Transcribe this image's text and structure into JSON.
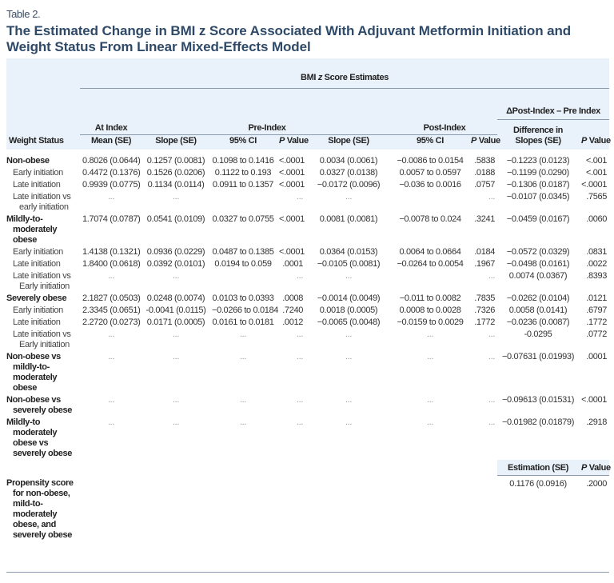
{
  "label": "Table 2.",
  "title": "The Estimated Change in BMI z Score Associated With Adjuvant Metformin Initiation and Weight Status From Linear Mixed-Effects Model",
  "colors": {
    "title": "#2f4a68",
    "header_bg": "#e9f1fa",
    "rule": "#8a9bb0"
  },
  "header": {
    "span_title_pre": "BMI ",
    "span_title_z": "z",
    "span_title_post": " Score Estimates",
    "delta_group": "ΔPost-Index – Pre Index",
    "at_index": "At Index",
    "pre_index": "Pre-Index",
    "post_index": "Post-Index",
    "difference": "Difference in Slopes (SE)",
    "columns": [
      "Weight Status",
      "Mean (SE)",
      "Slope (SE)",
      "95% CI",
      "Value",
      "Slope (SE)",
      "95% CI",
      "Value",
      "Value"
    ],
    "p": "P"
  },
  "rows": [
    {
      "label": "Non-obese",
      "type": "group",
      "cells": [
        "0.8026 (0.0644)",
        "0.1257 (0.0081)",
        "0.1098 to 0.1416",
        "<.0001",
        "0.0034 (0.0061)",
        "−0.0086 to 0.0154",
        ".5838",
        "−0.1223 (0.0123)",
        "<.001"
      ]
    },
    {
      "label": "Early initiation",
      "type": "sub",
      "cells": [
        "0.4472 (0.1376)",
        "0.1526 (0.0206)",
        "0.1122 to 0.193",
        "<.0001",
        "0.0327 (0.0138)",
        "0.0057 to 0.0597",
        ".0188",
        "−0.1199 (0.0290)",
        "<.001"
      ]
    },
    {
      "label": "Late initiation",
      "type": "sub",
      "cells": [
        "0.9939 (0.0775)",
        "0.1134 (0.0114)",
        "0.0911 to 0.1357",
        "<.0001",
        "−0.0172 (0.0096)",
        "−0.036 to 0.0016",
        ".0757",
        "−0.1306 (0.0187)",
        "<.0001"
      ]
    },
    {
      "label": "Late initiation vs early initiation",
      "type": "sub",
      "cells": [
        "...",
        "...",
        "",
        "...",
        "...",
        "",
        "...",
        "−0.0107 (0.0345)",
        ".7565"
      ]
    },
    {
      "label": "Mildly-to-moderately obese",
      "type": "group",
      "cells": [
        "1.7074 (0.0787)",
        "0.0541 (0.0109)",
        "0.0327 to 0.0755",
        "<.0001",
        "0.0081 (0.0081)",
        "−0.0078 to 0.024",
        ".3241",
        "−0.0459 (0.0167)",
        ".0060"
      ]
    },
    {
      "label": "Early initiation",
      "type": "sub",
      "cells": [
        "1.4138 (0.1321)",
        "0.0936 (0.0229)",
        "0.0487 to 0.1385",
        "<.0001",
        "0.0364 (0.0153)",
        "0.0064 to 0.0664",
        ".0184",
        "−0.0572 (0.0329)",
        ".0831"
      ]
    },
    {
      "label": "Late initiation",
      "type": "sub",
      "cells": [
        "1.8400 (0.0618)",
        "0.0392 (0.0101)",
        "0.0194 to 0.059",
        ".0001",
        "−0.0105 (0.0081)",
        "−0.0264 to 0.0054",
        ".1967",
        "−0.0498 (0.0161)",
        ".0022"
      ]
    },
    {
      "label": "Late initiation vs Early initiation",
      "type": "sub",
      "cells": [
        "...",
        "...",
        "",
        "...",
        "...",
        "",
        "...",
        "0.0074 (0.0367)",
        ".8393"
      ]
    },
    {
      "label": "Severely obese",
      "type": "group",
      "cells": [
        "2.1827 (0.0503)",
        "0.0248 (0.0074)",
        "0.0103 to 0.0393",
        ".0008",
        "−0.0014 (0.0049)",
        "−0.011 to 0.0082",
        ".7835",
        "−0.0262 (0.0104)",
        ".0121"
      ]
    },
    {
      "label": "Early initiation",
      "type": "sub",
      "cells": [
        "2.3345 (0.0651)",
        "-0.0041 (0.0115)",
        "−0.0266 to 0.0184",
        ".7240",
        "0.0018 (0.0005)",
        "0.0008 to 0.0028",
        ".7326",
        "0.0058 (0.0141)",
        ".6797"
      ]
    },
    {
      "label": "Late initiation",
      "type": "sub",
      "cells": [
        "2.2720 (0.0273)",
        "0.0171 (0.0005)",
        "0.0161 to 0.0181",
        ".0012",
        "−0.0065 (0.0048)",
        "−0.0159 to 0.0029",
        ".1772",
        "−0.0236 (0.0087)",
        ".1772"
      ]
    },
    {
      "label": "Late initiation vs Early initiation",
      "type": "sub",
      "cells": [
        "...",
        "...",
        "...",
        "...",
        "...",
        "...",
        "...",
        "-0.0295",
        ".0772"
      ]
    },
    {
      "label": "Non-obese vs mildly-to-moderately obese",
      "type": "group",
      "cells": [
        "...",
        "...",
        "...",
        "...",
        "...",
        "...",
        "...",
        "−0.07631 (0.01993)",
        ".0001"
      ]
    },
    {
      "label": "Non-obese vs severely obese",
      "type": "group",
      "cells": [
        "...",
        "...",
        "...",
        "...",
        "...",
        "...",
        "...",
        "−0.09613 (0.01531)",
        "<.0001"
      ]
    },
    {
      "label": "Mildly-to moderately obese vs severely obese",
      "type": "group",
      "cells": [
        "...",
        "...",
        "...",
        "...",
        "...",
        "...",
        "...",
        "−0.01982 (0.01879)",
        ".2918"
      ]
    }
  ],
  "propensity": {
    "header_estimation": "Estimation (SE)",
    "header_p_value": "Value",
    "label": "Propensity score for non-obese, mild-to-moderately obese, and severely obese",
    "estimation": "0.1176 (0.0916)",
    "p_value": ".2000"
  }
}
